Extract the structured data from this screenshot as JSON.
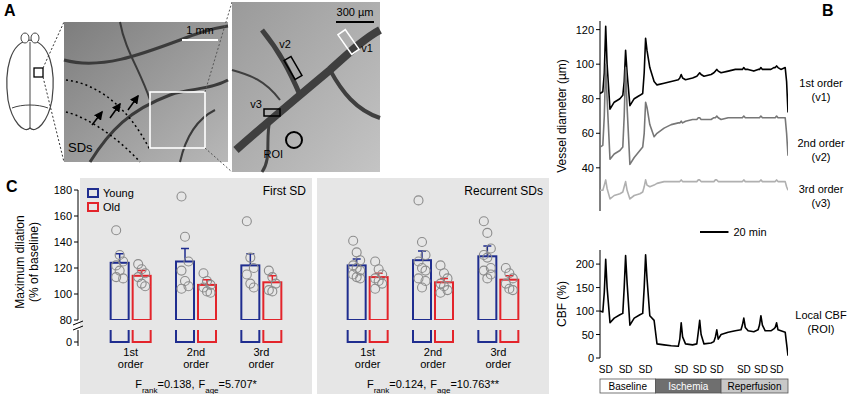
{
  "panel_a": {
    "panel_label": "A",
    "scale_bar_whole": "1 mm",
    "front_label": "SDs",
    "scale_bar_inset": "300 µm",
    "vessel_labels": [
      "v1",
      "v2",
      "v3"
    ],
    "roi_label": "ROI"
  },
  "chart_data": [
    {
      "panel_label": "B",
      "type": "line",
      "ylabel": "Vessel diameter (µm)",
      "x": [
        0,
        2,
        3,
        4,
        5,
        7,
        10,
        14,
        16,
        17,
        18,
        19,
        21,
        24,
        28,
        30,
        31,
        32,
        33,
        35,
        38,
        40,
        45,
        50,
        55,
        56,
        57,
        58,
        60,
        65,
        68,
        69,
        70,
        71,
        73,
        78,
        80,
        81,
        82,
        83,
        85,
        90,
        95,
        99,
        100,
        101,
        102,
        104,
        108,
        111,
        112,
        113,
        114,
        116,
        120,
        122,
        123,
        124,
        125,
        127,
        130,
        131,
        132
      ],
      "xlim": [
        0,
        132
      ],
      "ylim": [
        15,
        125
      ],
      "yticks": [
        40,
        60,
        80,
        100,
        120
      ],
      "tick_labels": "y",
      "scale_bar": {
        "value": 20,
        "label": "20 min"
      },
      "series": [
        {
          "name": "1st order (v1)",
          "color": "#000000",
          "values": [
            83,
            84,
            95,
            122,
            100,
            74,
            78,
            80,
            82,
            90,
            108,
            95,
            76,
            80,
            82,
            83,
            95,
            115,
            108,
            98,
            90,
            88,
            89,
            90,
            91,
            92,
            94,
            92,
            91,
            92,
            93,
            94,
            95,
            94,
            93,
            94,
            95,
            96,
            97,
            96,
            95,
            96,
            97,
            97,
            97,
            98,
            97,
            97,
            96,
            97,
            97,
            98,
            97,
            97,
            97,
            98,
            98,
            99,
            98,
            97,
            98,
            90,
            72
          ]
        },
        {
          "name": "2nd order (v2)",
          "color": "#777777",
          "values": [
            52,
            53,
            70,
            100,
            80,
            45,
            48,
            50,
            52,
            70,
            98,
            75,
            42,
            46,
            50,
            52,
            60,
            78,
            75,
            65,
            58,
            60,
            63,
            65,
            66,
            66,
            67,
            66,
            67,
            68,
            68,
            69,
            69,
            68,
            68,
            68,
            69,
            69,
            70,
            69,
            68,
            69,
            69,
            69,
            69,
            70,
            69,
            69,
            69,
            69,
            69,
            70,
            69,
            69,
            69,
            69,
            69,
            70,
            69,
            69,
            69,
            60,
            47
          ]
        },
        {
          "name": "3rd order (v3)",
          "color": "#b0b0b0",
          "values": [
            27,
            27,
            30,
            33,
            28,
            22,
            24,
            25,
            26,
            29,
            32,
            27,
            22,
            24,
            25,
            26,
            29,
            33,
            30,
            29,
            30,
            31,
            32,
            32,
            32,
            32,
            33,
            32,
            32,
            32,
            32,
            33,
            33,
            32,
            32,
            32,
            32,
            33,
            33,
            32,
            32,
            32,
            32,
            32,
            32,
            33,
            32,
            32,
            32,
            32,
            32,
            33,
            32,
            32,
            32,
            32,
            32,
            33,
            32,
            32,
            32,
            29,
            27
          ]
        }
      ]
    },
    {
      "type": "line",
      "ylabel": "CBF (%)",
      "x": [
        0,
        2,
        3,
        4,
        5,
        7,
        10,
        14,
        16,
        17,
        18,
        19,
        21,
        24,
        28,
        30,
        31,
        32,
        33,
        35,
        38,
        40,
        45,
        50,
        55,
        56,
        57,
        58,
        60,
        65,
        68,
        69,
        70,
        71,
        73,
        78,
        80,
        81,
        82,
        83,
        85,
        90,
        95,
        99,
        100,
        101,
        102,
        104,
        108,
        111,
        112,
        113,
        114,
        116,
        120,
        122,
        123,
        124,
        125,
        127,
        130,
        131,
        132
      ],
      "xlim": [
        0,
        132
      ],
      "ylim": [
        0,
        230
      ],
      "yticks": [
        0,
        50,
        100,
        150,
        200
      ],
      "tick_labels": "y",
      "series": [
        {
          "name": "Local CBF (ROI)",
          "color": "#000000",
          "values": [
            100,
            98,
            140,
            210,
            150,
            75,
            85,
            92,
            95,
            150,
            218,
            160,
            70,
            85,
            92,
            95,
            150,
            220,
            170,
            90,
            80,
            30,
            28,
            26,
            25,
            40,
            75,
            45,
            30,
            28,
            30,
            55,
            80,
            50,
            30,
            32,
            35,
            45,
            60,
            40,
            50,
            55,
            58,
            60,
            70,
            85,
            65,
            58,
            56,
            60,
            70,
            90,
            70,
            58,
            58,
            62,
            65,
            75,
            60,
            58,
            55,
            30,
            5
          ]
        }
      ],
      "annotations": [
        {
          "x": 4,
          "text": "SD"
        },
        {
          "x": 18,
          "text": "SD"
        },
        {
          "x": 32,
          "text": "SD"
        },
        {
          "x": 57,
          "text": "SD"
        },
        {
          "x": 70,
          "text": "SD"
        },
        {
          "x": 82,
          "text": "SD"
        },
        {
          "x": 101,
          "text": "SD"
        },
        {
          "x": 113,
          "text": "SD"
        },
        {
          "x": 124,
          "text": "SD"
        }
      ],
      "phases": [
        {
          "label": "Baseline",
          "start": 0,
          "end": 39
        },
        {
          "label": "Ischemia",
          "start": 39,
          "end": 85
        },
        {
          "label": "Reperfusion",
          "start": 85,
          "end": 132
        }
      ]
    },
    {
      "panel_label": "C",
      "type": "bar",
      "ylabel": "Maximum dilation (% of baseline)",
      "categories": [
        "1st order",
        "2nd order",
        "3rd order"
      ],
      "ylim": [
        80,
        180
      ],
      "yticks": [
        80,
        100,
        120,
        140,
        160,
        180
      ],
      "break_ticks": [
        0
      ],
      "legend": "top-left",
      "series": [
        {
          "name": "Young",
          "color": "#1f2d8f"
        },
        {
          "name": "Old",
          "color": "#e3242b"
        }
      ],
      "groups": [
        {
          "title": "First SD",
          "series": [
            {
              "values": [
                124,
                125,
                122
              ],
              "errors": [
                7,
                10,
                9
              ],
              "points": [
                [
                  149,
                  130,
                  125,
                  122,
                  118,
                  112,
                  113
                ],
                [
                  175,
                  144,
                  125,
                  118,
                  110,
                  106,
                  104
                ],
                [
                  156,
                  128,
                  120,
                  115,
                  108,
                  105
                ]
              ]
            },
            {
              "values": [
                114,
                107,
                109
              ],
              "errors": [
                4,
                4,
                5
              ],
              "points": [
                [
                  123,
                  119,
                  116,
                  113,
                  108,
                  106
                ],
                [
                  116,
                  110,
                  107,
                  105,
                  102,
                  101
                ],
                [
                  118,
                  113,
                  108,
                  103,
                  102
                ]
              ]
            }
          ],
          "stats": [
            {
              "symbol": "F",
              "subscript": "rank",
              "value_text": "=0.138,"
            },
            {
              "symbol": "F",
              "subscript": "age",
              "value_text": "=5.707*"
            }
          ]
        },
        {
          "title": "Recurrent SDs",
          "series": [
            {
              "values": [
                122,
                126,
                129
              ],
              "errors": [
                5,
                7,
                8
              ],
              "points": [
                [
                  141,
                  132,
                  126,
                  122,
                  120,
                  118,
                  115,
                  113,
                  112
                ],
                [
                  172,
                  140,
                  130,
                  125,
                  120,
                  118,
                  112,
                  105,
                  110
                ],
                [
                  156,
                  147,
                  135,
                  130,
                  128,
                  120,
                  118,
                  112,
                  115
                ]
              ]
            },
            {
              "values": [
                113,
                109,
                111
              ],
              "errors": [
                3,
                3,
                3
              ],
              "points": [
                [
                  125,
                  119,
                  115,
                  112,
                  110,
                  108,
                  104
                ],
                [
                  122,
                  116,
                  112,
                  108,
                  106,
                  103,
                  101
                ],
                [
                  120,
                  116,
                  112,
                  108,
                  104,
                  103
                ]
              ]
            }
          ],
          "stats": [
            {
              "symbol": "F",
              "subscript": "rank",
              "value_text": "=0.124,"
            },
            {
              "symbol": "F",
              "subscript": "age",
              "value_text": "=10.763**"
            }
          ]
        }
      ]
    }
  ]
}
